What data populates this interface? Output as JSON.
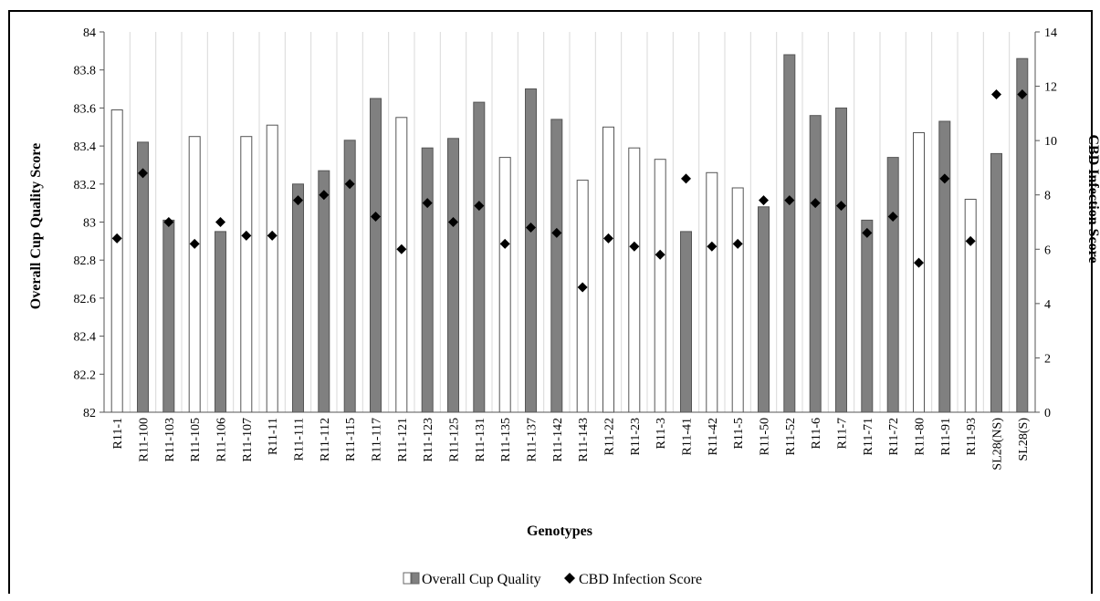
{
  "chart_data": {
    "type": "bar",
    "title": "",
    "xlabel": "Genotypes",
    "ylabel_left": "Overall Cup Quality Score",
    "ylabel_right": "CBD Infection Score",
    "ylim_left": [
      82,
      84
    ],
    "ylim_right": [
      0,
      14
    ],
    "yticks_left": [
      "82",
      "82.2",
      "82.4",
      "82.6",
      "82.8",
      "83",
      "83.2",
      "83.4",
      "83.6",
      "83.8",
      "84"
    ],
    "yticks_right": [
      "0",
      "2",
      "4",
      "6",
      "8",
      "10",
      "12",
      "14"
    ],
    "grid": true,
    "legend_position": "bottom",
    "categories": [
      "R11-1",
      "R11-100",
      "R11-103",
      "R11-105",
      "R11-106",
      "R11-107",
      "R11-11",
      "R11-111",
      "R11-112",
      "R11-115",
      "R11-117",
      "R11-121",
      "R11-123",
      "R11-125",
      "R11-131",
      "R11-135",
      "R11-137",
      "R11-142",
      "R11-143",
      "R11-22",
      "R11-23",
      "R11-3",
      "R11-41",
      "R11-42",
      "R11-5",
      "R11-50",
      "R11-52",
      "R11-6",
      "R11-7",
      "R11-71",
      "R11-72",
      "R11-80",
      "R11-91",
      "R11-93",
      "SL28(NS)",
      "SL28(S)"
    ],
    "series": [
      {
        "name": "Overall Cup Quality",
        "kind": "bar",
        "axis": "left",
        "values": [
          83.59,
          83.42,
          83.01,
          83.45,
          82.95,
          83.45,
          83.51,
          83.2,
          83.27,
          83.43,
          83.65,
          83.55,
          83.39,
          83.44,
          83.63,
          83.34,
          83.7,
          83.54,
          83.22,
          83.5,
          83.39,
          83.33,
          82.95,
          83.26,
          83.18,
          83.08,
          83.88,
          83.56,
          83.6,
          83.01,
          83.34,
          83.47,
          83.53,
          83.12,
          83.36,
          83.86
        ],
        "fills": [
          "#ffffff",
          "#808080",
          "#808080",
          "#ffffff",
          "#808080",
          "#ffffff",
          "#ffffff",
          "#808080",
          "#808080",
          "#808080",
          "#808080",
          "#ffffff",
          "#808080",
          "#808080",
          "#808080",
          "#ffffff",
          "#808080",
          "#808080",
          "#ffffff",
          "#ffffff",
          "#ffffff",
          "#ffffff",
          "#808080",
          "#ffffff",
          "#ffffff",
          "#808080",
          "#808080",
          "#808080",
          "#808080",
          "#808080",
          "#808080",
          "#ffffff",
          "#808080",
          "#ffffff",
          "#808080",
          "#808080"
        ]
      },
      {
        "name": "CBD Infection Score",
        "kind": "scatter",
        "marker": "diamond",
        "axis": "right",
        "values": [
          6.4,
          8.8,
          7.0,
          6.2,
          7.0,
          6.5,
          6.5,
          7.8,
          8.0,
          8.4,
          7.2,
          6.0,
          7.7,
          7.0,
          7.6,
          6.2,
          6.8,
          6.6,
          4.6,
          6.4,
          6.1,
          5.8,
          8.6,
          6.1,
          6.2,
          7.8,
          7.8,
          7.7,
          7.6,
          6.6,
          7.2,
          5.5,
          8.6,
          6.3,
          11.7,
          11.7
        ]
      }
    ],
    "legend": {
      "bar_label": "Overall Cup Quality",
      "marker_label": "CBD Infection Score"
    }
  }
}
